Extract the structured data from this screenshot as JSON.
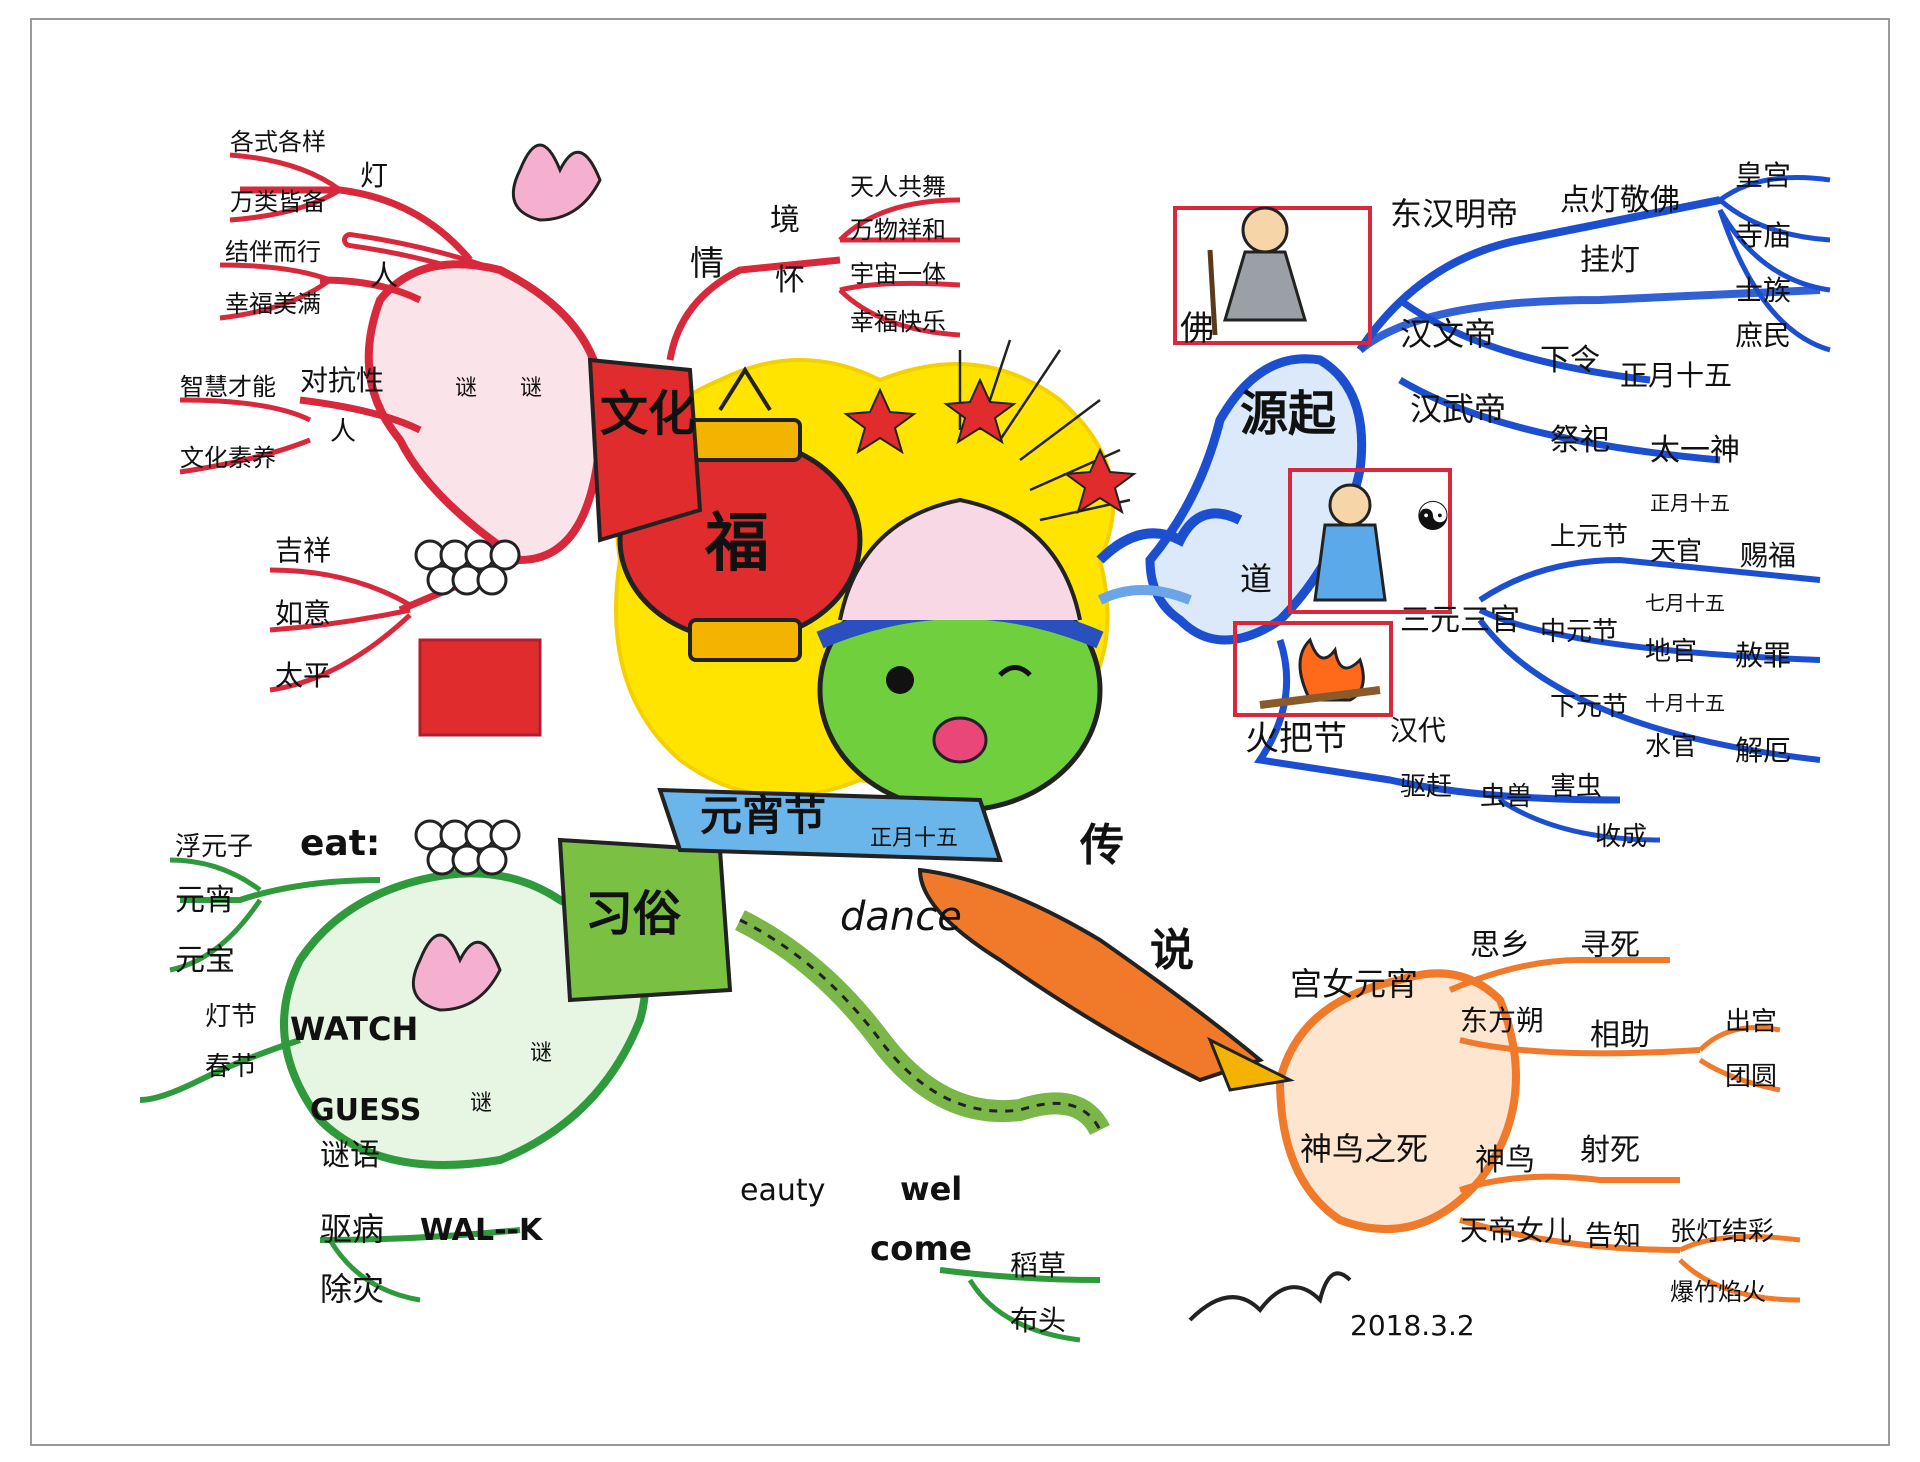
{
  "center": {
    "title": "元宵节",
    "subtitle": "正月十五",
    "lantern_char": "福"
  },
  "culture": {
    "label": "文化",
    "lamp": "灯",
    "lamp_items": [
      "各式各样",
      "万类皆备"
    ],
    "people": "人",
    "people_items": [
      "结伴而行",
      "幸福美满"
    ],
    "adversarial": "对抗性",
    "adversarial_person": "人",
    "adversarial_items": [
      "智慧才能",
      "文化素养"
    ],
    "lantern_tag": "谜",
    "wishes": [
      "吉祥",
      "如意",
      "太平"
    ],
    "emotion": "情",
    "scene": "境",
    "scene_items": [
      "天人共舞",
      "万物祥和"
    ],
    "feeling": "怀",
    "feeling_items": [
      "宇宙一体",
      "幸福快乐"
    ]
  },
  "origin": {
    "label": "源起",
    "buddha": "佛",
    "emperor_ming": "东汉明帝",
    "light_worship": "点灯敬佛",
    "hang_lamp": "挂灯",
    "hang_places": [
      "皇宫",
      "寺庙",
      "士族",
      "庶民"
    ],
    "emperor_wen": "汉文帝",
    "decree": "下令",
    "decree_date": "正月十五",
    "emperor_wu": "汉武帝",
    "sacrifice": "祭祀",
    "deity": "太一神",
    "tao": "道",
    "three_officials": "三元三官",
    "upper": "上元节",
    "upper_date": "正月十五",
    "heaven_official": "天官",
    "bless": "赐福",
    "middle": "中元节",
    "middle_date": "七月十五",
    "earth_official": "地官",
    "pardon": "赦罪",
    "lower": "下元节",
    "lower_date": "十月十五",
    "water_official": "水官",
    "relief": "解厄",
    "torch": "火把节",
    "han": "汉代",
    "expel": "驱赶",
    "insects": "虫兽",
    "pests": "害虫",
    "harvest": "收成",
    "yin_yang": "☯"
  },
  "customs": {
    "label": "习俗",
    "eat": "eat:",
    "foods": [
      "浮元子",
      "元宵",
      "元宝"
    ],
    "watch": "WATCH",
    "watch_items": [
      "灯节",
      "春节"
    ],
    "guess": "GUESS",
    "riddle": "谜语",
    "walk": "WAL--K",
    "walk_items": [
      "驱病",
      "除灾"
    ],
    "dance": "dance",
    "welcome": "wel",
    "come": "come",
    "beauty": "eauty",
    "straw": "稻草",
    "cloth": "布头",
    "seal_char": "谜"
  },
  "legend": {
    "label_1": "传",
    "label_2": "说",
    "palace_maid": "宫女元宵",
    "homesick": "思乡",
    "suicide": "寻死",
    "dongfang": "东方朔",
    "help": "相助",
    "exit_palace": "出宫",
    "reunion": "团圆",
    "bird_death": "神鸟之死",
    "bird": "神鸟",
    "shot": "射死",
    "jade_daughter": "天帝女儿",
    "inform": "告知",
    "lanterns": "张灯结彩",
    "firecrackers": "爆竹焰火"
  },
  "signature": {
    "date": "2018.3.2"
  },
  "colors": {
    "red": "#d8283c",
    "blue": "#1c4fd0",
    "green": "#2f9a3c",
    "orange": "#f07a2a",
    "yellow": "#ffe400"
  }
}
